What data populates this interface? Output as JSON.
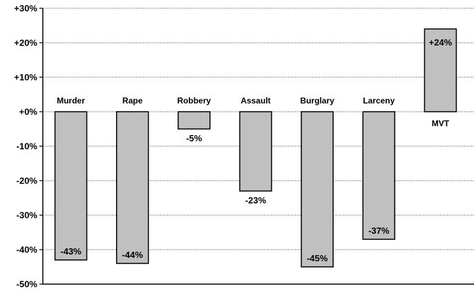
{
  "chart_data": {
    "type": "bar",
    "title": "",
    "xlabel": "",
    "ylabel": "",
    "categories": [
      "Murder",
      "Rape",
      "Robbery",
      "Assault",
      "Burglary",
      "Larceny",
      "MVT"
    ],
    "values": [
      -43,
      -44,
      -5,
      -23,
      -45,
      -37,
      24
    ],
    "data_labels": [
      "-43%",
      "-44%",
      "-5%",
      "-23%",
      "-45%",
      "-37%",
      "+24%"
    ],
    "ylim": [
      -50,
      30
    ],
    "yticks": [
      30,
      20,
      10,
      0,
      -10,
      -20,
      -30,
      -40,
      -50
    ],
    "ytick_labels": [
      "+30%",
      "+20%",
      "+10%",
      "+0%",
      "-10%",
      "-20%",
      "-30%",
      "-40%",
      "-50%"
    ],
    "grid": "horizontal dotted",
    "legend": "none",
    "colors": {
      "bar_fill": "#c0c0c0",
      "bar_stroke": "#000000",
      "grid": "#000000",
      "axis": "#000000"
    }
  }
}
